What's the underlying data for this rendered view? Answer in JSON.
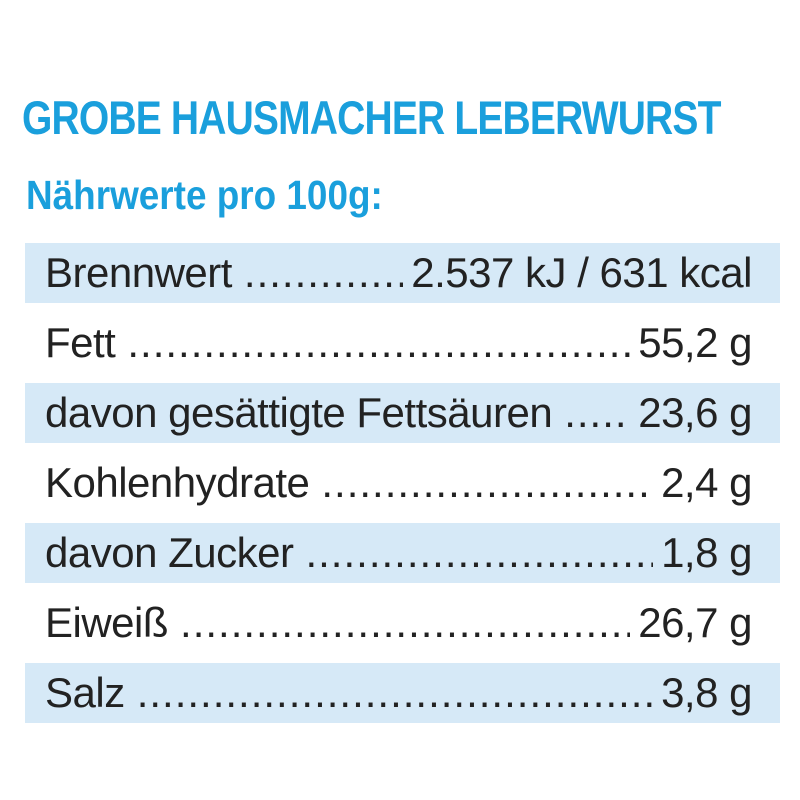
{
  "title": "GROBE HAUSMACHER LEBERWURST",
  "subtitle": "Nährwerte pro 100g:",
  "rows": [
    {
      "label": "Brennwert",
      "value": "2.537 kJ / 631 kcal"
    },
    {
      "label": "Fett",
      "value": "55,2 g"
    },
    {
      "label": "davon gesättigte Fettsäuren",
      "value": "23,6 g"
    },
    {
      "label": "Kohlenhydrate",
      "value": "2,4 g"
    },
    {
      "label": "davon Zucker",
      "value": "1,8 g"
    },
    {
      "label": "Eiweiß",
      "value": "26,7 g"
    },
    {
      "label": "Salz",
      "value": "3,8 g"
    }
  ],
  "colors": {
    "accent": "#1a9fdc",
    "row_shade": "#d6e9f7",
    "text": "#222222"
  }
}
